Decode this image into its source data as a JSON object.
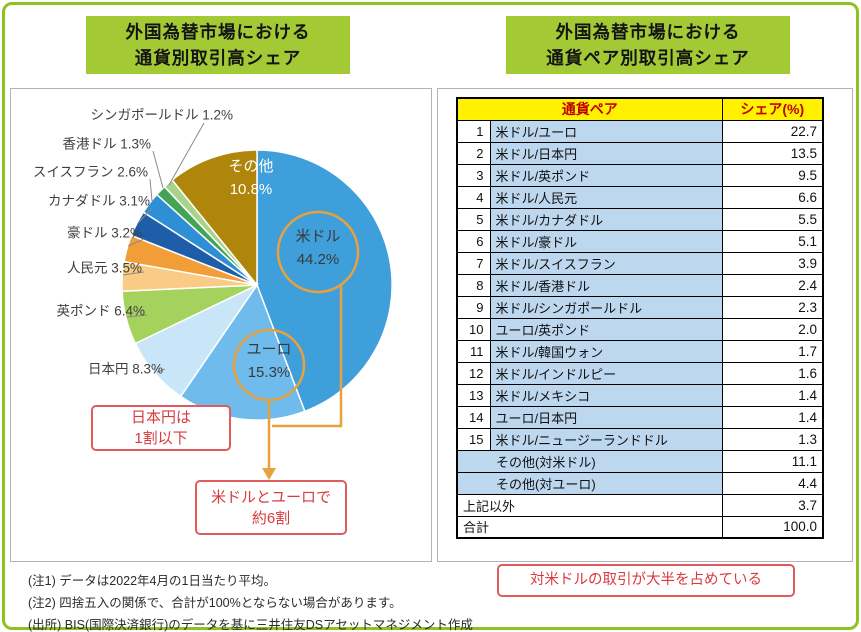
{
  "titles": {
    "left": [
      "外国為替市場における",
      "通貨別取引高シェア"
    ],
    "right": [
      "外国為替市場における",
      "通貨ペア別取引高シェア"
    ]
  },
  "chart_data": [
    {
      "type": "pie",
      "title": "外国為替市場における通貨別取引高シェア",
      "value_unit": "%",
      "slices": [
        {
          "id": "usd",
          "label": "米ドル",
          "value": 44.2,
          "color": "#3F9FDB"
        },
        {
          "id": "eur",
          "label": "ユーロ",
          "value": 15.3,
          "color": "#6FBCEC"
        },
        {
          "id": "jpy",
          "label": "日本円",
          "value": 8.3,
          "color": "#C9E6F8"
        },
        {
          "id": "gbp",
          "label": "英ポンド",
          "value": 6.4,
          "color": "#A5D25C"
        },
        {
          "id": "cny",
          "label": "人民元",
          "value": 3.5,
          "color": "#FACB84"
        },
        {
          "id": "aud",
          "label": "豪ドル",
          "value": 3.2,
          "color": "#F19D38"
        },
        {
          "id": "cad",
          "label": "カナダドル",
          "value": 3.1,
          "color": "#1E5DA8"
        },
        {
          "id": "chf",
          "label": "スイスフラン",
          "value": 2.6,
          "color": "#2F8FD4"
        },
        {
          "id": "hkd",
          "label": "香港ドル",
          "value": 1.3,
          "color": "#43A457"
        },
        {
          "id": "sgd",
          "label": "シンガポールドル",
          "value": 1.2,
          "color": "#A8D48A"
        },
        {
          "id": "other",
          "label": "その他",
          "value": 10.8,
          "color": "#B0850B"
        }
      ]
    },
    {
      "type": "table",
      "title": "外国為替市場における通貨ペア別取引高シェア",
      "columns": [
        "通貨ペア",
        "シェア(%)"
      ],
      "rows": [
        {
          "rank": "1",
          "pair": "米ドル/ユーロ",
          "share": "22.7"
        },
        {
          "rank": "2",
          "pair": "米ドル/日本円",
          "share": "13.5"
        },
        {
          "rank": "3",
          "pair": "米ドル/英ポンド",
          "share": "9.5"
        },
        {
          "rank": "4",
          "pair": "米ドル/人民元",
          "share": "6.6"
        },
        {
          "rank": "5",
          "pair": "米ドル/カナダドル",
          "share": "5.5"
        },
        {
          "rank": "6",
          "pair": "米ドル/豪ドル",
          "share": "5.1"
        },
        {
          "rank": "7",
          "pair": "米ドル/スイスフラン",
          "share": "3.9"
        },
        {
          "rank": "8",
          "pair": "米ドル/香港ドル",
          "share": "2.4"
        },
        {
          "rank": "9",
          "pair": "米ドル/シンガポールドル",
          "share": "2.3"
        },
        {
          "rank": "10",
          "pair": "ユーロ/英ポンド",
          "share": "2.0"
        },
        {
          "rank": "11",
          "pair": "米ドル/韓国ウォン",
          "share": "1.7"
        },
        {
          "rank": "12",
          "pair": "米ドル/インドルピー",
          "share": "1.6"
        },
        {
          "rank": "13",
          "pair": "米ドル/メキシコ",
          "share": "1.4"
        },
        {
          "rank": "14",
          "pair": "ユーロ/日本円",
          "share": "1.4"
        },
        {
          "rank": "15",
          "pair": "米ドル/ニュージーランドドル",
          "share": "1.3"
        },
        {
          "kind": "other",
          "pair": "その他(対米ドル)",
          "share": "11.1"
        },
        {
          "kind": "other",
          "pair": "その他(対ユーロ)",
          "share": "4.4"
        },
        {
          "kind": "wide",
          "pair": "上記以外",
          "share": "3.7"
        },
        {
          "kind": "total",
          "pair": "合計",
          "share": "100.0"
        }
      ]
    }
  ],
  "annotations": {
    "yen_note": [
      "日本円は",
      "1割以下"
    ],
    "usd_eur_note": [
      "米ドルとユーロで",
      "約6割"
    ],
    "table_note": "対米ドルの取引が大半を占めている"
  },
  "notes": [
    "(注1) データは2022年4月の1日当たり平均。",
    "(注2) 四捨五入の関係で、合計が100%とならない場合があります。",
    "(出所) BIS(国際決済銀行)のデータを基に三井住友DSアセットマネジメント作成"
  ],
  "colors": {
    "frame_green": "#8EC21F",
    "title_green": "#A3CA35",
    "table_header_yellow": "#FFF100",
    "table_header_red": "#C00000",
    "table_cell_blue": "#BDD7EE",
    "annotation_red": "#D93A3E",
    "highlight_orange": "#E8A13C"
  }
}
